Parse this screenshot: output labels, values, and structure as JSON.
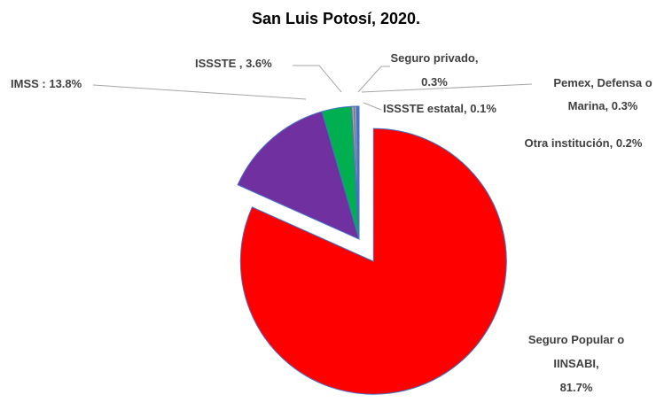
{
  "chart_data": {
    "type": "pie",
    "title": "San Luis Potosí, 2020.",
    "values": [
      81.7,
      13.8,
      3.6,
      0.3,
      0.3,
      0.1,
      0.2
    ],
    "value_labels": [
      [
        "Seguro Popular o",
        "IINSABI,",
        "81.7%"
      ],
      [
        "IMSS : 13.8%"
      ],
      [
        "ISSSTE , 3.6%"
      ],
      [
        "Seguro privado,",
        "0.3%"
      ],
      [
        "Pemex, Defensa o",
        "Marina, 0.3%"
      ],
      [
        "ISSSTE estatal, 0.1%"
      ],
      [
        "Otra institución, 0.2%"
      ]
    ],
    "colors": [
      "#ff0000",
      "#7030a0",
      "#00b050",
      "#c9a27a",
      "#a5a5a5",
      "#1f3864",
      "#4472c4"
    ]
  }
}
